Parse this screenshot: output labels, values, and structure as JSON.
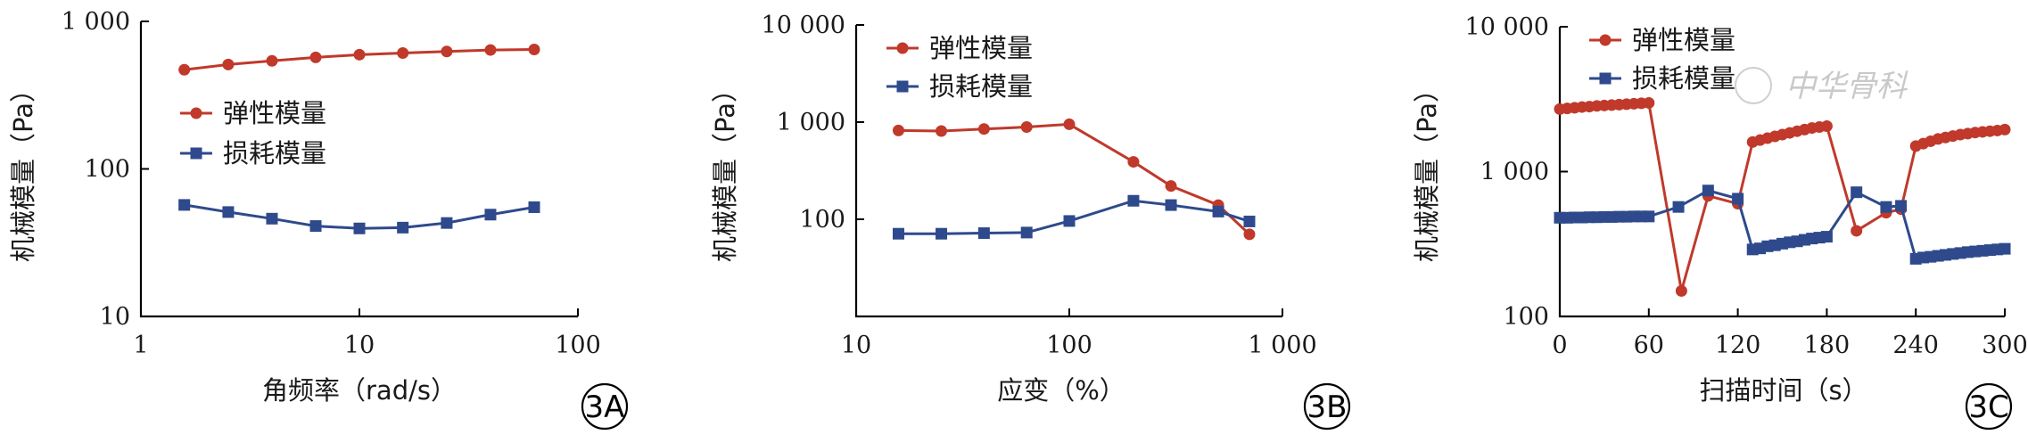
{
  "colors": {
    "elastic": "#c0392b",
    "loss": "#2e4a8c",
    "axis": "#000000"
  },
  "watermark": "中华骨科",
  "chart_data": [
    {
      "panel_label": "3A",
      "type": "line",
      "xlabel": "角频率（rad/s）",
      "ylabel": "机械模量（Pa）",
      "x_scale": "log",
      "y_scale": "log",
      "xlim": [
        1,
        100
      ],
      "ylim": [
        10,
        1000
      ],
      "xticks": [
        1,
        10,
        100
      ],
      "xtick_labels": [
        "1",
        "10",
        "100"
      ],
      "yticks": [
        10,
        100,
        1000
      ],
      "ytick_labels": [
        "10",
        "100",
        "1 000"
      ],
      "legend_position": "center-left",
      "series": [
        {
          "name": "弹性模量",
          "marker": "circle",
          "color": "#c0392b",
          "x": [
            1.58,
            2.51,
            3.98,
            6.31,
            10,
            15.8,
            25.1,
            39.8,
            63.1
          ],
          "y": [
            470,
            510,
            540,
            570,
            595,
            610,
            625,
            640,
            645
          ]
        },
        {
          "name": "损耗模量",
          "marker": "square",
          "color": "#2e4a8c",
          "x": [
            1.58,
            2.51,
            3.98,
            6.31,
            10,
            15.8,
            25.1,
            39.8,
            63.1
          ],
          "y": [
            57,
            51,
            46,
            41,
            39.5,
            40,
            43,
            49,
            55
          ]
        }
      ]
    },
    {
      "panel_label": "3B",
      "type": "line",
      "xlabel": "应变（%）",
      "ylabel": "机械模量（Pa）",
      "x_scale": "log",
      "y_scale": "log",
      "xlim": [
        10,
        1000
      ],
      "ylim": [
        10,
        10000
      ],
      "xticks": [
        10,
        100,
        1000
      ],
      "xtick_labels": [
        "10",
        "100",
        "1 000"
      ],
      "yticks": [
        100,
        1000,
        10000
      ],
      "ytick_labels": [
        "100",
        "1 000",
        "10 000"
      ],
      "legend_position": "top-left",
      "series": [
        {
          "name": "弹性模量",
          "marker": "circle",
          "color": "#c0392b",
          "x": [
            15.8,
            25.1,
            39.8,
            63.1,
            100,
            200,
            300,
            500,
            700
          ],
          "y": [
            820,
            810,
            850,
            890,
            950,
            390,
            220,
            140,
            70
          ]
        },
        {
          "name": "损耗模量",
          "marker": "square",
          "color": "#2e4a8c",
          "x": [
            15.8,
            25.1,
            39.8,
            63.1,
            100,
            200,
            300,
            500,
            700
          ],
          "y": [
            71,
            71,
            72,
            73,
            96,
            155,
            140,
            120,
            95
          ]
        }
      ]
    },
    {
      "panel_label": "3C",
      "type": "line",
      "xlabel": "扫描时间（s）",
      "ylabel": "机械模量（Pa）",
      "x_scale": "linear",
      "y_scale": "log",
      "xlim": [
        0,
        300
      ],
      "ylim": [
        100,
        10000
      ],
      "xticks": [
        0,
        60,
        120,
        180,
        240,
        300
      ],
      "xtick_labels": [
        "0",
        "60",
        "120",
        "180",
        "240",
        "300"
      ],
      "yticks": [
        100,
        1000,
        10000
      ],
      "ytick_labels": [
        "100",
        "1 000",
        "10 000"
      ],
      "legend_position": "top-left",
      "series": [
        {
          "name": "弹性模量",
          "marker": "circle",
          "color": "#c0392b",
          "x": [
            0,
            5,
            10,
            15,
            20,
            25,
            30,
            35,
            40,
            45,
            50,
            55,
            60,
            82,
            100,
            120,
            130,
            135,
            140,
            145,
            150,
            155,
            160,
            165,
            170,
            175,
            180,
            200,
            220,
            230,
            240,
            245,
            250,
            255,
            260,
            265,
            270,
            275,
            280,
            285,
            290,
            295,
            300
          ],
          "y": [
            2700,
            2730,
            2760,
            2790,
            2810,
            2840,
            2860,
            2880,
            2900,
            2920,
            2940,
            2960,
            2980,
            150,
            680,
            600,
            1600,
            1650,
            1700,
            1750,
            1800,
            1850,
            1900,
            1950,
            2000,
            2030,
            2060,
            390,
            520,
            550,
            1500,
            1560,
            1620,
            1680,
            1720,
            1760,
            1800,
            1830,
            1860,
            1880,
            1900,
            1920,
            1950
          ]
        },
        {
          "name": "损耗模量",
          "marker": "square",
          "color": "#2e4a8c",
          "x": [
            0,
            5,
            10,
            15,
            20,
            25,
            30,
            35,
            40,
            45,
            50,
            55,
            60,
            80,
            100,
            120,
            130,
            135,
            140,
            145,
            150,
            155,
            160,
            165,
            170,
            175,
            180,
            200,
            220,
            230,
            240,
            245,
            250,
            255,
            260,
            265,
            270,
            275,
            280,
            285,
            290,
            295,
            300
          ],
          "y": [
            480,
            480,
            482,
            482,
            484,
            484,
            486,
            486,
            488,
            488,
            490,
            490,
            490,
            570,
            740,
            650,
            290,
            295,
            305,
            310,
            318,
            325,
            330,
            338,
            345,
            350,
            355,
            720,
            570,
            580,
            250,
            255,
            258,
            262,
            266,
            270,
            274,
            278,
            281,
            284,
            287,
            290,
            293
          ]
        }
      ]
    }
  ]
}
